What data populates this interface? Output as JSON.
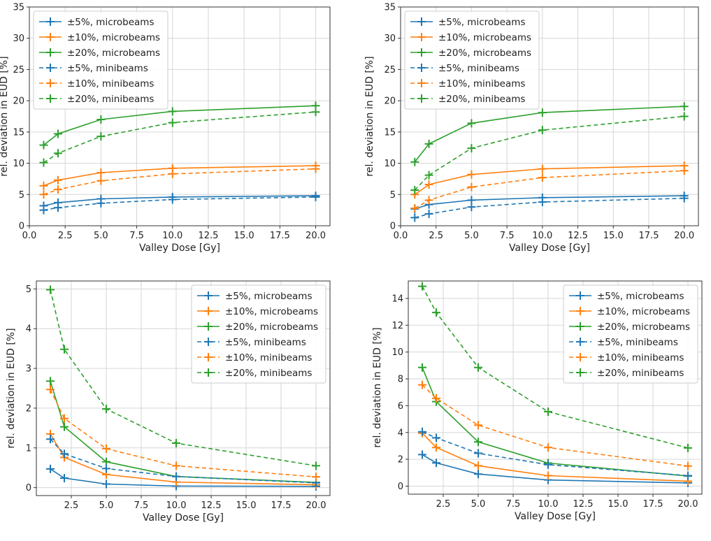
{
  "colors": {
    "s5": "#1f77b4",
    "s10": "#ff7f0e",
    "s20": "#2ca02c"
  },
  "chart_data": [
    {
      "type": "line",
      "xlabel": "Valley Dose [Gy]",
      "ylabel": "rel. deviation in EUD [%]",
      "xlim": [
        0.0,
        21.0
      ],
      "ylim": [
        0,
        35
      ],
      "xticks": [
        0.0,
        2.5,
        5.0,
        7.5,
        10.0,
        12.5,
        15.0,
        17.5,
        20.0
      ],
      "xtick_labels": [
        "0.0",
        "2.5",
        "5.0",
        "7.5",
        "10.0",
        "12.5",
        "15.0",
        "17.5",
        "20.0"
      ],
      "yticks": [
        0,
        5,
        10,
        15,
        20,
        25,
        30,
        35
      ],
      "ytick_labels": [
        "0",
        "5",
        "10",
        "15",
        "20",
        "25",
        "30",
        "35"
      ],
      "legend_loc": "upper-left",
      "grid": true,
      "x": [
        1,
        2,
        5,
        10,
        20
      ],
      "series": [
        {
          "name": "±5%, microbeams",
          "color": "s5",
          "dashed": false,
          "values": [
            3.2,
            3.7,
            4.3,
            4.6,
            4.8
          ]
        },
        {
          "name": "±10%, microbeams",
          "color": "s10",
          "dashed": false,
          "values": [
            6.4,
            7.3,
            8.5,
            9.2,
            9.6
          ]
        },
        {
          "name": "±20%, microbeams",
          "color": "s20",
          "dashed": false,
          "values": [
            12.9,
            14.7,
            17.0,
            18.3,
            19.2
          ]
        },
        {
          "name": "±5%, minibeams",
          "color": "s5",
          "dashed": true,
          "values": [
            2.5,
            2.9,
            3.6,
            4.2,
            4.6
          ]
        },
        {
          "name": "±10%, minibeams",
          "color": "s10",
          "dashed": true,
          "values": [
            5.0,
            5.8,
            7.2,
            8.3,
            9.1
          ]
        },
        {
          "name": "±20%, minibeams",
          "color": "s20",
          "dashed": true,
          "values": [
            10.1,
            11.6,
            14.3,
            16.5,
            18.2
          ]
        }
      ]
    },
    {
      "type": "line",
      "xlabel": "Valley Dose [Gy]",
      "ylabel": "rel. deviation in EUD [%]",
      "xlim": [
        0.0,
        21.0
      ],
      "ylim": [
        0,
        35
      ],
      "xticks": [
        0.0,
        2.5,
        5.0,
        7.5,
        10.0,
        12.5,
        15.0,
        17.5,
        20.0
      ],
      "xtick_labels": [
        "0.0",
        "2.5",
        "5.0",
        "7.5",
        "10.0",
        "12.5",
        "15.0",
        "17.5",
        "20.0"
      ],
      "yticks": [
        0,
        5,
        10,
        15,
        20,
        25,
        30,
        35
      ],
      "ytick_labels": [
        "0",
        "5",
        "10",
        "15",
        "20",
        "25",
        "30",
        "35"
      ],
      "legend_loc": "upper-left",
      "grid": true,
      "x": [
        1,
        2,
        5,
        10,
        20
      ],
      "series": [
        {
          "name": "±5%, microbeams",
          "color": "s5",
          "dashed": false,
          "values": [
            2.7,
            3.4,
            4.1,
            4.5,
            4.8
          ]
        },
        {
          "name": "±10%, microbeams",
          "color": "s10",
          "dashed": false,
          "values": [
            5.0,
            6.6,
            8.2,
            9.1,
            9.6
          ]
        },
        {
          "name": "±20%, microbeams",
          "color": "s20",
          "dashed": false,
          "values": [
            10.2,
            13.1,
            16.4,
            18.1,
            19.1
          ]
        },
        {
          "name": "±5%, minibeams",
          "color": "s5",
          "dashed": true,
          "values": [
            1.3,
            1.9,
            3.0,
            3.8,
            4.4
          ]
        },
        {
          "name": "±10%, minibeams",
          "color": "s10",
          "dashed": true,
          "values": [
            2.8,
            4.1,
            6.2,
            7.7,
            8.8
          ]
        },
        {
          "name": "±20%, minibeams",
          "color": "s20",
          "dashed": true,
          "values": [
            5.7,
            8.1,
            12.4,
            15.3,
            17.5
          ]
        }
      ]
    },
    {
      "type": "line",
      "xlabel": "Valley Dose [Gy]",
      "ylabel": "rel. deviation in EUD [%]",
      "xlim": [
        0.0,
        21.0
      ],
      "ylim": [
        -0.2,
        5.2
      ],
      "xticks": [
        2.5,
        5.0,
        7.5,
        10.0,
        12.5,
        15.0,
        17.5,
        20.0
      ],
      "xtick_labels": [
        "2.5",
        "5.0",
        "7.5",
        "10.0",
        "12.5",
        "15.0",
        "17.5",
        "20.0"
      ],
      "yticks": [
        0,
        1,
        2,
        3,
        4,
        5
      ],
      "ytick_labels": [
        "0",
        "1",
        "2",
        "3",
        "4",
        "5"
      ],
      "legend_loc": "upper-right",
      "grid": true,
      "x": [
        1,
        2,
        5,
        10,
        20
      ],
      "series": [
        {
          "name": "±5%, microbeams",
          "color": "s5",
          "dashed": false,
          "values": [
            0.47,
            0.24,
            0.09,
            0.04,
            0.03
          ]
        },
        {
          "name": "±10%, microbeams",
          "color": "s10",
          "dashed": false,
          "values": [
            1.35,
            0.76,
            0.33,
            0.14,
            0.07
          ]
        },
        {
          "name": "±20%, microbeams",
          "color": "s20",
          "dashed": false,
          "values": [
            2.68,
            1.53,
            0.65,
            0.28,
            0.13
          ]
        },
        {
          "name": "±5%, minibeams",
          "color": "s5",
          "dashed": true,
          "values": [
            1.22,
            0.85,
            0.48,
            0.28,
            0.12
          ]
        },
        {
          "name": "±10%, minibeams",
          "color": "s10",
          "dashed": true,
          "values": [
            2.47,
            1.74,
            0.98,
            0.55,
            0.27
          ]
        },
        {
          "name": "±20%, minibeams",
          "color": "s20",
          "dashed": true,
          "values": [
            4.98,
            3.48,
            1.98,
            1.12,
            0.55
          ]
        }
      ]
    },
    {
      "type": "line",
      "xlabel": "Valley Dose [Gy]",
      "ylabel": "rel. deviation in EUD [%]",
      "xlim": [
        0.0,
        21.0
      ],
      "ylim": [
        -0.6,
        15.3
      ],
      "xticks": [
        2.5,
        5.0,
        7.5,
        10.0,
        12.5,
        15.0,
        17.5,
        20.0
      ],
      "xtick_labels": [
        "2.5",
        "5.0",
        "7.5",
        "10.0",
        "12.5",
        "15.0",
        "17.5",
        "20.0"
      ],
      "yticks": [
        0,
        2,
        4,
        6,
        8,
        10,
        12,
        14
      ],
      "ytick_labels": [
        "0",
        "2",
        "4",
        "6",
        "8",
        "10",
        "12",
        "14"
      ],
      "legend_loc": "upper-right",
      "grid": true,
      "x": [
        1,
        2,
        5,
        10,
        20
      ],
      "series": [
        {
          "name": "±5%, microbeams",
          "color": "s5",
          "dashed": false,
          "values": [
            2.35,
            1.73,
            0.9,
            0.46,
            0.24
          ]
        },
        {
          "name": "±10%, microbeams",
          "color": "s10",
          "dashed": false,
          "values": [
            3.95,
            2.88,
            1.52,
            0.78,
            0.37
          ]
        },
        {
          "name": "±20%, microbeams",
          "color": "s20",
          "dashed": false,
          "values": [
            8.85,
            6.3,
            3.3,
            1.72,
            0.75
          ]
        },
        {
          "name": "±5%, minibeams",
          "color": "s5",
          "dashed": true,
          "values": [
            4.05,
            3.6,
            2.45,
            1.6,
            0.78
          ]
        },
        {
          "name": "±10%, minibeams",
          "color": "s10",
          "dashed": true,
          "values": [
            7.55,
            6.55,
            4.55,
            2.88,
            1.5
          ]
        },
        {
          "name": "±20%, minibeams",
          "color": "s20",
          "dashed": true,
          "values": [
            14.9,
            12.95,
            8.85,
            5.55,
            2.85
          ]
        }
      ]
    }
  ]
}
